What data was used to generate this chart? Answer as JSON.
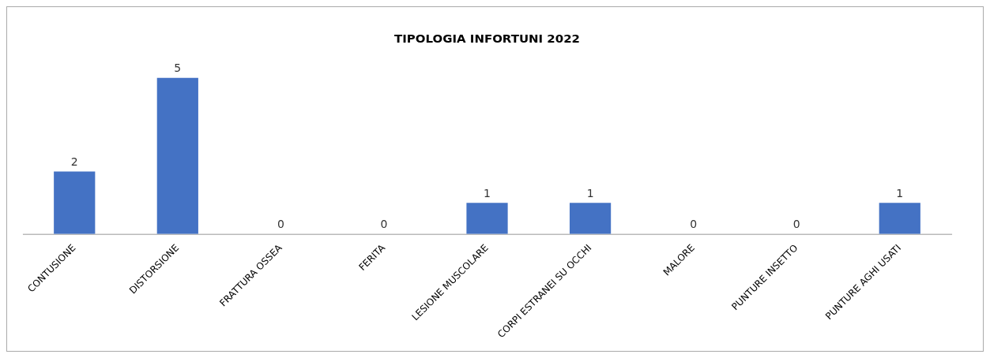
{
  "chart_data": {
    "type": "bar",
    "title": "TIPOLOGIA INFORTUNI 2022",
    "categories": [
      "CONTUSIONE",
      "DISTORSIONE",
      "FRATTURA OSSEA",
      "FERITA",
      "LESIONE MUSCOLARE",
      "CORPI ESTRANEI SU OCCHI",
      "MALORE",
      "PUNTURE INSETTO",
      "PUNTURE AGHI USATI"
    ],
    "values": [
      2,
      5,
      0,
      0,
      1,
      1,
      0,
      0,
      1
    ],
    "color": "#4472c4",
    "data_labels": true,
    "grid": false,
    "legend": false,
    "tick_labels": "x"
  }
}
